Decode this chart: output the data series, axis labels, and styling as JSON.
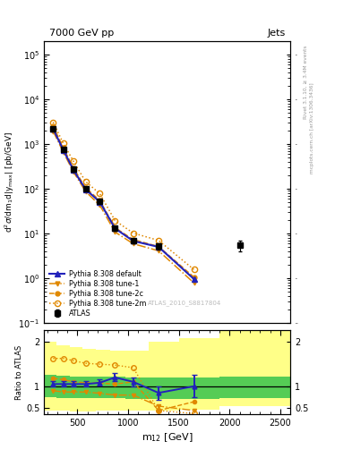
{
  "title_left": "7000 GeV pp",
  "title_right": "Jets",
  "right_label1": "Rivet 3.1.10, ≥ 3.4M events",
  "right_label2": "mcplots.cern.ch [arXiv:1306.3436]",
  "watermark": "ATLAS_2010_S8817804",
  "color_blue": "#2222bb",
  "color_orange": "#e08800",
  "color_yellow": "#ffff88",
  "color_green": "#55cc55",
  "x_pts": [
    260,
    360,
    460,
    580,
    720,
    870,
    1050,
    1300,
    1650,
    2100
  ],
  "atlas_y": [
    2200,
    750,
    270,
    100,
    52,
    13,
    6.8,
    5.2,
    null,
    5.5
  ],
  "atlas_ye": [
    200,
    65,
    24,
    9,
    5,
    1.5,
    0.9,
    0.8,
    null,
    1.5
  ],
  "py_def_y": [
    2200,
    740,
    265,
    97,
    51,
    13.0,
    6.8,
    5.0,
    0.95,
    null
  ],
  "py_t1_y": [
    1950,
    660,
    240,
    87,
    43,
    10.8,
    5.9,
    4.1,
    0.78,
    null
  ],
  "py_t2c_y": [
    2550,
    820,
    295,
    105,
    55,
    13.5,
    7.3,
    5.1,
    1.05,
    null
  ],
  "py_t2m_y": [
    3100,
    1040,
    415,
    145,
    78,
    19.5,
    10.2,
    7.0,
    1.55,
    null
  ],
  "ratio_x": [
    260,
    360,
    460,
    580,
    720,
    870,
    1050,
    1300,
    1650
  ],
  "ratio_def": [
    1.05,
    1.05,
    1.05,
    1.05,
    1.08,
    1.2,
    1.1,
    0.85,
    1.0
  ],
  "ratio_def_e": [
    0.06,
    0.06,
    0.06,
    0.06,
    0.07,
    0.09,
    0.1,
    0.15,
    0.25
  ],
  "ratio_t1": [
    0.9,
    0.87,
    0.87,
    0.87,
    0.84,
    0.8,
    0.8,
    0.55,
    0.45
  ],
  "ratio_t2c": [
    1.18,
    1.15,
    1.1,
    1.08,
    1.07,
    1.05,
    1.1,
    0.45,
    0.65
  ],
  "ratio_t2m": [
    1.63,
    1.63,
    1.58,
    1.52,
    1.5,
    1.48,
    1.42,
    0.45,
    0.38
  ],
  "band_edges": [
    170,
    295,
    425,
    545,
    680,
    820,
    975,
    1200,
    1500,
    1900,
    2600
  ],
  "yel_lo": [
    0.45,
    0.44,
    0.43,
    0.43,
    0.44,
    0.44,
    0.44,
    0.44,
    0.46,
    0.55
  ],
  "yel_hi": [
    2.0,
    1.92,
    1.88,
    1.85,
    1.82,
    1.8,
    1.8,
    2.0,
    2.1,
    2.25
  ],
  "grn_lo": [
    0.75,
    0.74,
    0.73,
    0.73,
    0.73,
    0.73,
    0.72,
    0.71,
    0.72,
    0.74
  ],
  "grn_hi": [
    1.25,
    1.24,
    1.22,
    1.21,
    1.21,
    1.21,
    1.2,
    1.19,
    1.19,
    1.22
  ]
}
